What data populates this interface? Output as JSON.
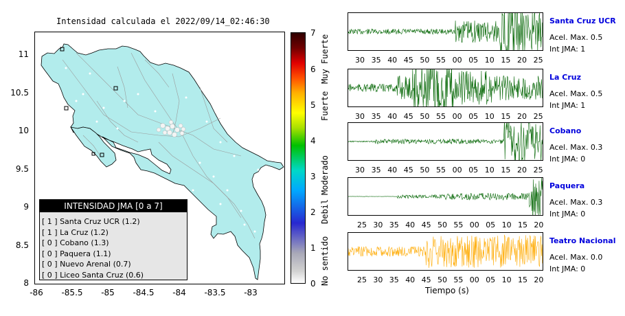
{
  "map": {
    "title": "Intensidad calculada el 2022/09/14_02:46:30",
    "y_ticks": [
      "11",
      "10.5",
      "10",
      "9.5",
      "9",
      "8.5",
      "8"
    ],
    "x_ticks": [
      "-86",
      "-85.5",
      "-85",
      "-84.5",
      "-84",
      "-83.5",
      "-83"
    ],
    "land_color": "#b2ecec",
    "legend": {
      "title": "INTENSIDAD JMA [0 a 7]",
      "rows": [
        "[ 1 ]  Santa Cruz UCR (1.2)",
        "[ 1 ]  La Cruz (1.2)",
        "[ 0 ]  Cobano (1.3)",
        "[ 0 ]  Paquera (1.1)",
        "[ 0 ]  Nuevo Arenal (0.7)",
        "[ 0 ]  Liceo Santa Cruz (0.6)"
      ]
    }
  },
  "colorbar": {
    "ticks": [
      "7",
      "6",
      "5",
      "4",
      "3",
      "2",
      "1",
      "0"
    ],
    "labels": [
      "Muy Fuerte",
      "Fuerte",
      "Moderado",
      "Debil",
      "No sentido"
    ]
  },
  "stations": [
    {
      "name": "Santa Cruz UCR",
      "acel": "Acel. Max. 0.5",
      "int": "Int JMA: 1",
      "color": "#006400",
      "ticks": [
        "30",
        "35",
        "40",
        "45",
        "50",
        "55",
        "00",
        "05",
        "10",
        "15",
        "20",
        "25"
      ]
    },
    {
      "name": "La Cruz",
      "acel": "Acel. Max. 0.5",
      "int": "Int JMA: 1",
      "color": "#006400",
      "ticks": [
        "30",
        "35",
        "40",
        "45",
        "50",
        "55",
        "00",
        "05",
        "10",
        "15",
        "20",
        "25"
      ]
    },
    {
      "name": "Cobano",
      "acel": "Acel. Max. 0.3",
      "int": "Int JMA: 0",
      "color": "#006400",
      "ticks": [
        "30",
        "35",
        "40",
        "45",
        "50",
        "55",
        "00",
        "05",
        "10",
        "15",
        "20",
        "25"
      ]
    },
    {
      "name": "Paquera",
      "acel": "Acel. Max. 0.3",
      "int": "Int JMA: 0",
      "color": "#006400",
      "ticks": [
        "25",
        "30",
        "35",
        "40",
        "45",
        "50",
        "55",
        "00",
        "05",
        "10",
        "15",
        "20"
      ]
    },
    {
      "name": "Teatro Nacional",
      "acel": "Acel. Max. 0.0",
      "int": "Int JMA: 0",
      "color": "#ffaa00",
      "ticks": [
        "25",
        "30",
        "35",
        "40",
        "45",
        "50",
        "55",
        "00",
        "05",
        "10",
        "15",
        "20"
      ]
    }
  ],
  "time_axis_label": "Tiempo (s)"
}
